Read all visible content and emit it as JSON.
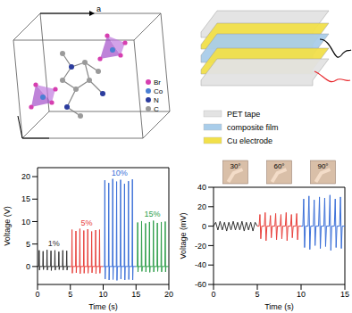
{
  "crystal_structure": {
    "axis_label": "a",
    "legend": [
      {
        "label": "Br",
        "color": "#d63fb0"
      },
      {
        "label": "Co",
        "color": "#4a7fd4"
      },
      {
        "label": "N",
        "color": "#2b3c9e"
      },
      {
        "label": "C",
        "color": "#9a9a9a"
      }
    ]
  },
  "device_schematic": {
    "legend": [
      {
        "label": "PET tape",
        "color": "#e3e3e3"
      },
      {
        "label": "composite film",
        "color": "#a9cdea"
      },
      {
        "label": "Cu electrode",
        "color": "#f2e04a"
      }
    ]
  },
  "chart_data": [
    {
      "type": "line",
      "x_label": "Time (s)",
      "y_label": "Voltage (V)",
      "xlim": [
        0,
        20
      ],
      "xticks": [
        0,
        5,
        10,
        15,
        20
      ],
      "ylim": [
        -4,
        22
      ],
      "yticks": [
        0,
        5,
        10,
        15,
        20
      ],
      "series": [
        {
          "name": "1%",
          "color": "#333333",
          "x": [
            0,
            0.2,
            0.25,
            0.3,
            0.35,
            0.8,
            0.85,
            0.9,
            0.95,
            1.4,
            1.45,
            1.5,
            1.55,
            2.0,
            2.05,
            2.1,
            2.15,
            2.6,
            2.65,
            2.7,
            2.75,
            3.2,
            3.25,
            3.3,
            3.35,
            3.8,
            3.85,
            3.9,
            3.95,
            4.4,
            4.45,
            4.5,
            4.55,
            5.0
          ],
          "values": [
            0,
            0,
            3.6,
            -0.8,
            0,
            0,
            3.4,
            -0.7,
            0,
            0,
            3.7,
            -0.8,
            0,
            0,
            3.5,
            -0.9,
            0,
            0,
            3.6,
            -0.8,
            0,
            0,
            3.3,
            -0.7,
            0,
            0,
            3.6,
            -0.8,
            0,
            0,
            3.5,
            -0.8,
            0,
            0
          ]
        },
        {
          "name": "5%",
          "color": "#e8413c",
          "x": [
            5,
            5.2,
            5.25,
            5.3,
            5.35,
            5.8,
            5.85,
            5.9,
            5.95,
            6.4,
            6.45,
            6.5,
            6.55,
            7.0,
            7.05,
            7.1,
            7.15,
            7.6,
            7.65,
            7.7,
            7.75,
            8.2,
            8.25,
            8.3,
            8.35,
            8.8,
            8.85,
            8.9,
            8.95,
            9.4,
            9.45,
            9.5,
            9.55,
            10.0
          ],
          "values": [
            0,
            0,
            8.2,
            -1.5,
            0,
            0,
            7.9,
            -1.4,
            0,
            0,
            8.4,
            -1.6,
            0,
            0,
            8.0,
            -1.5,
            0,
            0,
            8.3,
            -1.5,
            0,
            0,
            7.8,
            -1.4,
            0,
            0,
            8.1,
            -1.6,
            0,
            0,
            8.2,
            -1.5,
            0,
            0
          ]
        },
        {
          "name": "10%",
          "color": "#3a6fd8",
          "x": [
            10,
            10.2,
            10.25,
            10.3,
            10.35,
            10.8,
            10.85,
            10.9,
            10.95,
            11.4,
            11.45,
            11.5,
            11.55,
            12.0,
            12.05,
            12.1,
            12.15,
            12.6,
            12.65,
            12.7,
            12.75,
            13.2,
            13.25,
            13.3,
            13.35,
            13.8,
            13.85,
            13.9,
            13.95,
            14.4,
            14.45,
            14.5,
            14.55,
            15.0
          ],
          "values": [
            0,
            0,
            19.2,
            -2.8,
            0,
            0,
            18.6,
            -3.0,
            0,
            0,
            19.5,
            -2.9,
            0,
            0,
            18.9,
            -3.1,
            0,
            0,
            19.3,
            -2.8,
            0,
            0,
            18.4,
            -3.0,
            0,
            0,
            19.0,
            -2.9,
            0,
            0,
            19.4,
            -3.0,
            0,
            0
          ]
        },
        {
          "name": "15%",
          "color": "#2e9e4a",
          "x": [
            15,
            15.2,
            15.25,
            15.3,
            15.35,
            15.8,
            15.85,
            15.9,
            15.95,
            16.4,
            16.45,
            16.5,
            16.55,
            17.0,
            17.05,
            17.1,
            17.15,
            17.6,
            17.65,
            17.7,
            17.75,
            18.2,
            18.25,
            18.3,
            18.35,
            18.8,
            18.85,
            18.9,
            18.95,
            19.4,
            19.45,
            19.5,
            19.55,
            20.0
          ],
          "values": [
            0,
            0,
            9.8,
            -1.2,
            0,
            0,
            10.1,
            -1.1,
            0,
            0,
            9.6,
            -1.2,
            0,
            0,
            9.9,
            -1.3,
            0,
            0,
            10.2,
            -1.2,
            0,
            0,
            9.7,
            -1.1,
            0,
            0,
            9.9,
            -1.2,
            0,
            0,
            10.0,
            -1.2,
            0,
            0
          ]
        }
      ]
    },
    {
      "type": "line",
      "x_label": "Time (s)",
      "y_label": "Voltage (mV)",
      "xlim": [
        0,
        15
      ],
      "xticks": [
        0,
        5,
        10,
        15
      ],
      "ylim": [
        -60,
        40
      ],
      "yticks": [
        -60,
        -40,
        -20,
        0,
        20,
        40
      ],
      "series": [
        {
          "name": "30°",
          "color": "#333333",
          "x": [
            0,
            0.25,
            0.5,
            0.75,
            1,
            1.25,
            1.5,
            1.75,
            2,
            2.25,
            2.5,
            2.75,
            3,
            3.25,
            3.5,
            3.75,
            4,
            4.25,
            4.5,
            4.75,
            5
          ],
          "values": [
            0,
            4,
            -4,
            5,
            -4,
            4,
            -5,
            4,
            -4,
            5,
            -4,
            4,
            -4,
            5,
            -5,
            4,
            -4,
            4,
            -5,
            4,
            0
          ]
        },
        {
          "name": "60°",
          "color": "#e8413c",
          "x": [
            5,
            5.2,
            5.3,
            5.4,
            5.5,
            5.8,
            5.9,
            6.0,
            6.1,
            6.4,
            6.5,
            6.6,
            6.7,
            7.0,
            7.1,
            7.2,
            7.3,
            7.6,
            7.7,
            7.8,
            7.9,
            8.2,
            8.3,
            8.4,
            8.5,
            8.8,
            8.9,
            9.0,
            9.1,
            9.4,
            9.5,
            9.6,
            9.7,
            10
          ],
          "values": [
            0,
            0,
            12,
            -13,
            0,
            0,
            14,
            -15,
            0,
            0,
            11,
            -12,
            0,
            0,
            13,
            -14,
            0,
            0,
            12,
            -13,
            0,
            0,
            14,
            -15,
            0,
            0,
            12,
            -12,
            0,
            0,
            13,
            -14,
            0,
            0
          ]
        },
        {
          "name": "90°",
          "color": "#3a6fd8",
          "x": [
            10,
            10.2,
            10.3,
            10.4,
            10.5,
            10.8,
            10.9,
            11.0,
            11.1,
            11.4,
            11.5,
            11.6,
            11.7,
            12.0,
            12.1,
            12.2,
            12.3,
            12.6,
            12.7,
            12.8,
            12.9,
            13.2,
            13.3,
            13.4,
            13.5,
            13.8,
            13.9,
            14.0,
            14.1,
            14.4,
            14.5,
            14.6,
            14.7,
            15
          ],
          "values": [
            0,
            0,
            28,
            -22,
            0,
            0,
            31,
            -24,
            0,
            0,
            27,
            -20,
            0,
            0,
            30,
            -23,
            0,
            0,
            29,
            -21,
            0,
            0,
            32,
            -25,
            0,
            0,
            28,
            -22,
            0,
            0,
            30,
            -23,
            0,
            0
          ]
        }
      ]
    }
  ]
}
